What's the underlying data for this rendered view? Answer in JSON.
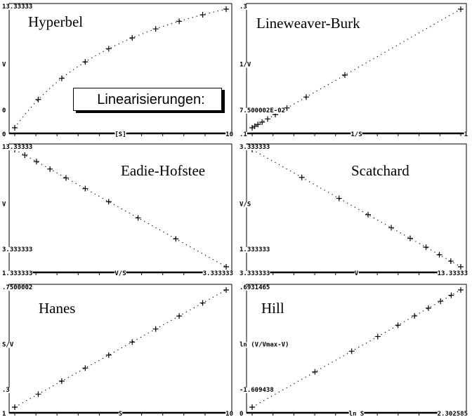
{
  "note": "Linearisierungen:",
  "chart_data": [
    {
      "type": "scatter",
      "title": "Hyperbel",
      "xlabel": "[S]",
      "ylabel": "V",
      "x": [
        1,
        2,
        3,
        4,
        5,
        6,
        7,
        8,
        9,
        10
      ],
      "y": [
        3.3333,
        5.7143,
        7.5,
        8.8889,
        10,
        10.9091,
        11.6667,
        12.3077,
        12.8571,
        13.3333
      ],
      "xlim": [
        1,
        10
      ],
      "ylim": [
        3.3333,
        13.3333
      ],
      "labels": {
        "ytop": "13.33333",
        "ymid": "V",
        "ylow": "0",
        "xleft": "0",
        "xmid": "[S]",
        "xright": "10"
      },
      "fit": "curve"
    },
    {
      "type": "scatter",
      "title": "Lineweaver-Burk",
      "xlabel": "1/S",
      "ylabel": "1/V",
      "x": [
        0.1,
        0.1111,
        0.125,
        0.1429,
        0.1667,
        0.2,
        0.25,
        0.3333,
        0.5,
        1
      ],
      "y": [
        0.075,
        0.0778,
        0.0813,
        0.0857,
        0.0917,
        0.1,
        0.1125,
        0.1333,
        0.175,
        0.3
      ],
      "xlim": [
        0.1,
        1
      ],
      "ylim": [
        0.075,
        0.3
      ],
      "labels": {
        "ytop": ".3",
        "ymid": "1/V",
        "ylow": "7.500002E-02",
        "xleft": ".1",
        "xmid": "1/S",
        "xright": "1"
      },
      "fit": "line"
    },
    {
      "type": "scatter",
      "title": "Eadie-Hofstee",
      "xlabel": "V/S",
      "ylabel": "V",
      "x": [
        1.3333,
        1.4286,
        1.5385,
        1.6667,
        1.8182,
        2,
        2.2222,
        2.5,
        2.8571,
        3.3333
      ],
      "y": [
        13.3333,
        12.8571,
        12.3077,
        11.6667,
        10.9091,
        10,
        8.8889,
        7.5,
        5.7143,
        3.3333
      ],
      "xlim": [
        1.3333,
        3.3333
      ],
      "ylim": [
        3.3333,
        13.3333
      ],
      "labels": {
        "ytop": "13.33333",
        "ymid": "V",
        "ylow": "3.333333",
        "xleft": "1.333333",
        "xmid": "V/S",
        "xright": "3.333333"
      },
      "fit": "line"
    },
    {
      "type": "scatter",
      "title": "Scatchard",
      "xlabel": "V",
      "ylabel": "V/S",
      "x": [
        3.3333,
        5.7143,
        7.5,
        8.8889,
        10,
        10.9091,
        11.6667,
        12.3077,
        12.8571,
        13.3333
      ],
      "y": [
        3.3333,
        2.8571,
        2.5,
        2.2222,
        2,
        1.8182,
        1.6667,
        1.5385,
        1.4286,
        1.3333
      ],
      "xlim": [
        3.3333,
        13.3333
      ],
      "ylim": [
        1.3333,
        3.3333
      ],
      "labels": {
        "ytop": "3.333333",
        "ymid": "V/S",
        "ylow": "1.333333",
        "xleft": "3.333333",
        "xmid": "V",
        "xright": "13.33333"
      },
      "fit": "line"
    },
    {
      "type": "scatter",
      "title": "Hanes",
      "xlabel": "S",
      "ylabel": "S/V",
      "x": [
        1,
        2,
        3,
        4,
        5,
        6,
        7,
        8,
        9,
        10
      ],
      "y": [
        0.3,
        0.35,
        0.4,
        0.45,
        0.5,
        0.55,
        0.6,
        0.65,
        0.7,
        0.75
      ],
      "xlim": [
        1,
        10
      ],
      "ylim": [
        0.3,
        0.75
      ],
      "labels": {
        "ytop": ".7500002",
        "ymid": "S/V",
        "ylow": ".3",
        "xleft": "1",
        "xmid": "S",
        "xright": "10"
      },
      "fit": "line"
    },
    {
      "type": "scatter",
      "title": "Hill",
      "xlabel": "ln S",
      "ylabel": "ln (V/Vmax-V)",
      "x": [
        0,
        0.6931,
        1.0986,
        1.3863,
        1.6094,
        1.7918,
        1.9459,
        2.0794,
        2.1972,
        2.3026
      ],
      "y": [
        -1.6094,
        -0.9163,
        -0.5108,
        -0.2231,
        0,
        0.1823,
        0.3365,
        0.47,
        0.5878,
        0.6931
      ],
      "xlim": [
        0,
        2.302585
      ],
      "ylim": [
        -1.609438,
        0.6931465
      ],
      "labels": {
        "ytop": ".6931465",
        "ymid": "ln (V/Vmax-V)",
        "ylow": "-1.609438",
        "xleft": "0",
        "xmid": "ln S",
        "xright": "2.302585"
      },
      "fit": "line"
    }
  ]
}
